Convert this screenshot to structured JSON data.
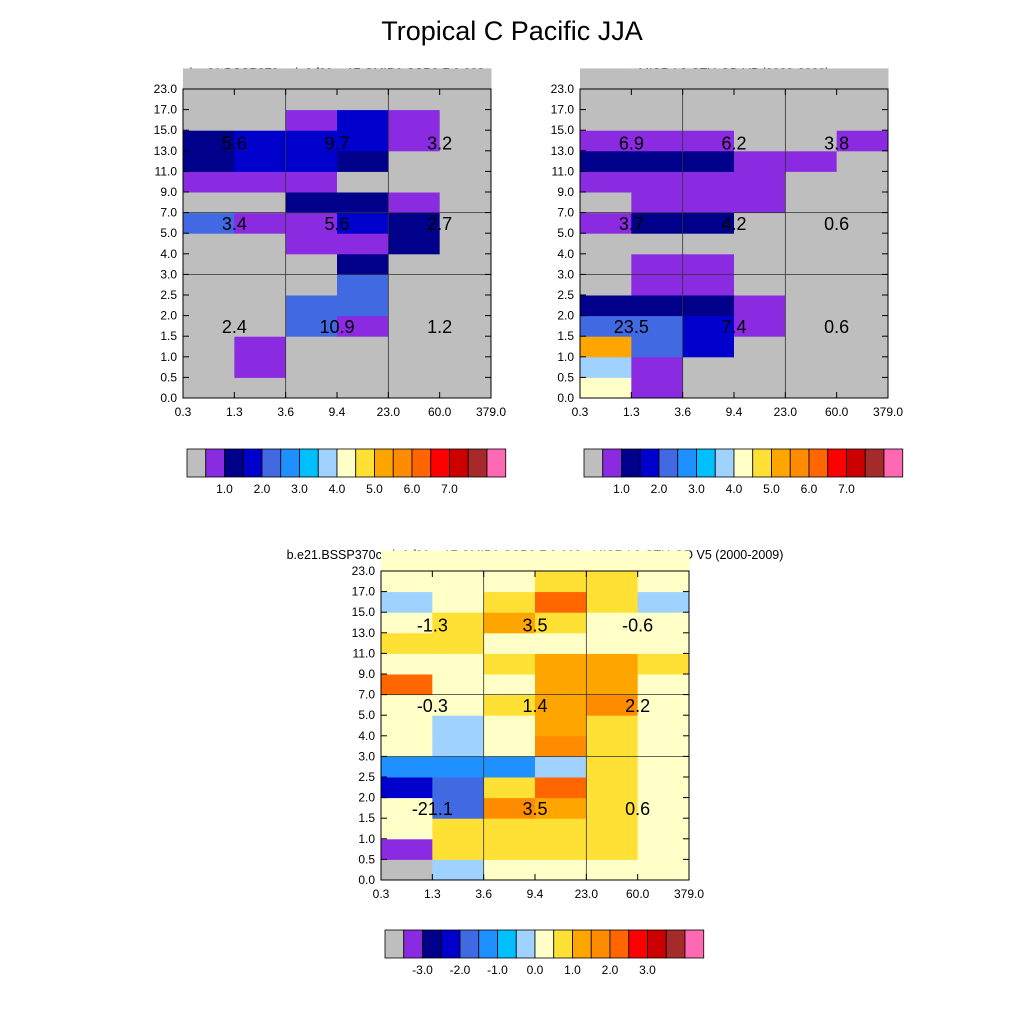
{
  "page": {
    "title": "Tropical C Pacific JJA"
  },
  "chart_data": [
    {
      "type": "heatmap",
      "title": "b.e21.BSSP370cmip6.f09_g17.CMIP6-SSP3-7.0.002",
      "x_ticks": [
        "0.3",
        "1.3",
        "3.6",
        "9.4",
        "23.0",
        "60.0",
        "379.0"
      ],
      "y_ticks": [
        "0.0",
        "0.5",
        "1.0",
        "1.5",
        "2.0",
        "2.5",
        "3.0",
        "4.0",
        "5.0",
        "7.0",
        "9.0",
        "11.0",
        "13.0",
        "15.0",
        "17.0",
        "23.0"
      ],
      "grid": true,
      "cells": [
        [
          0,
          0,
          0,
          0,
          0,
          0
        ],
        [
          0,
          1,
          0,
          0,
          0,
          0
        ],
        [
          0,
          1,
          0,
          0,
          0,
          0
        ],
        [
          0,
          0,
          4,
          1,
          0,
          0
        ],
        [
          0,
          0,
          4,
          4,
          0,
          0
        ],
        [
          0,
          0,
          0,
          4,
          0,
          0
        ],
        [
          0,
          0,
          0,
          2,
          0,
          0
        ],
        [
          0,
          0,
          1,
          1,
          2,
          0
        ],
        [
          4,
          1,
          1,
          3,
          2,
          0
        ],
        [
          0,
          0,
          2,
          2,
          1,
          0
        ],
        [
          1,
          1,
          1,
          0,
          0,
          0
        ],
        [
          2,
          3,
          3,
          2,
          0,
          0
        ],
        [
          2,
          3,
          3,
          3,
          1,
          0
        ],
        [
          0,
          0,
          1,
          3,
          1,
          0
        ],
        [
          0,
          0,
          0,
          0,
          0,
          0
        ],
        [
          0,
          0,
          0,
          0,
          0,
          0
        ]
      ],
      "annotations": [
        {
          "x": 1,
          "y": 12,
          "text": "5.6"
        },
        {
          "x": 3,
          "y": 12,
          "text": "9.7"
        },
        {
          "x": 5,
          "y": 12,
          "text": "3.2"
        },
        {
          "x": 1,
          "y": 8,
          "text": "3.4"
        },
        {
          "x": 3,
          "y": 8,
          "text": "5.6"
        },
        {
          "x": 5,
          "y": 8,
          "text": "2.7"
        },
        {
          "x": 1,
          "y": 3,
          "text": "2.4"
        },
        {
          "x": 3,
          "y": 3,
          "text": "10.9"
        },
        {
          "x": 5,
          "y": 3,
          "text": "1.2"
        }
      ],
      "colorbar_labels": [
        "1.0",
        "2.0",
        "3.0",
        "4.0",
        "5.0",
        "6.0",
        "7.0"
      ]
    },
    {
      "type": "heatmap",
      "title": "MISR L3 CTH-OD V5 (2000-2009)",
      "x_ticks": [
        "0.3",
        "1.3",
        "3.6",
        "9.4",
        "23.0",
        "60.0",
        "379.0"
      ],
      "y_ticks": [
        "0.0",
        "0.5",
        "1.0",
        "1.5",
        "2.0",
        "2.5",
        "3.0",
        "4.0",
        "5.0",
        "7.0",
        "9.0",
        "11.0",
        "13.0",
        "15.0",
        "17.0",
        "23.0"
      ],
      "grid": true,
      "cells": [
        [
          8,
          1,
          0,
          0,
          0,
          0
        ],
        [
          7,
          1,
          0,
          0,
          0,
          0
        ],
        [
          10,
          4,
          3,
          0,
          0,
          0
        ],
        [
          4,
          4,
          3,
          1,
          0,
          0
        ],
        [
          2,
          2,
          2,
          1,
          0,
          0
        ],
        [
          0,
          1,
          1,
          0,
          0,
          0
        ],
        [
          0,
          1,
          1,
          0,
          0,
          0
        ],
        [
          0,
          0,
          0,
          0,
          0,
          0
        ],
        [
          1,
          2,
          2,
          0,
          0,
          0
        ],
        [
          0,
          1,
          1,
          1,
          0,
          0
        ],
        [
          1,
          1,
          1,
          1,
          0,
          0
        ],
        [
          2,
          2,
          2,
          1,
          1,
          0
        ],
        [
          1,
          1,
          1,
          0,
          0,
          1
        ],
        [
          0,
          0,
          0,
          0,
          0,
          0
        ],
        [
          0,
          0,
          0,
          0,
          0,
          0
        ],
        [
          0,
          0,
          0,
          0,
          0,
          0
        ]
      ],
      "annotations": [
        {
          "x": 1,
          "y": 12,
          "text": "6.9"
        },
        {
          "x": 3,
          "y": 12,
          "text": "6.2"
        },
        {
          "x": 5,
          "y": 12,
          "text": "3.8"
        },
        {
          "x": 1,
          "y": 8,
          "text": "3.7"
        },
        {
          "x": 3,
          "y": 8,
          "text": "4.2"
        },
        {
          "x": 5,
          "y": 8,
          "text": "0.6"
        },
        {
          "x": 1,
          "y": 3,
          "text": "23.5"
        },
        {
          "x": 3,
          "y": 3,
          "text": "7.4"
        },
        {
          "x": 5,
          "y": 3,
          "text": "0.6"
        }
      ],
      "colorbar_labels": [
        "1.0",
        "2.0",
        "3.0",
        "4.0",
        "5.0",
        "6.0",
        "7.0"
      ]
    },
    {
      "type": "heatmap",
      "title": "b.e21.BSSP370cmip6.f09_g17.CMIP6-SSP3-7.0.002 - MISR L3 CTH-OD V5 (2000-2009)",
      "x_ticks": [
        "0.3",
        "1.3",
        "3.6",
        "9.4",
        "23.0",
        "60.0",
        "379.0"
      ],
      "y_ticks": [
        "0.0",
        "0.5",
        "1.0",
        "1.5",
        "2.0",
        "2.5",
        "3.0",
        "4.0",
        "5.0",
        "7.0",
        "9.0",
        "11.0",
        "13.0",
        "15.0",
        "17.0",
        "23.0"
      ],
      "grid": true,
      "cells": [
        [
          0,
          7,
          8,
          8,
          8,
          8
        ],
        [
          1,
          9,
          9,
          9,
          9,
          8
        ],
        [
          8,
          9,
          9,
          9,
          9,
          8
        ],
        [
          8,
          4,
          11,
          10,
          9,
          8
        ],
        [
          3,
          4,
          9,
          12,
          9,
          8
        ],
        [
          5,
          5,
          5,
          7,
          9,
          8
        ],
        [
          8,
          7,
          8,
          11,
          9,
          8
        ],
        [
          8,
          7,
          8,
          10,
          9,
          8
        ],
        [
          8,
          8,
          9,
          10,
          11,
          8
        ],
        [
          12,
          8,
          8,
          10,
          10,
          8
        ],
        [
          8,
          8,
          9,
          10,
          10,
          9
        ],
        [
          9,
          9,
          8,
          8,
          8,
          8
        ],
        [
          8,
          9,
          10,
          9,
          8,
          8
        ],
        [
          7,
          8,
          9,
          12,
          9,
          7
        ],
        [
          8,
          8,
          8,
          9,
          9,
          8
        ],
        [
          8,
          8,
          8,
          8,
          8,
          8
        ]
      ],
      "annotations": [
        {
          "x": 1,
          "y": 12,
          "text": "-1.3"
        },
        {
          "x": 3,
          "y": 12,
          "text": "3.5"
        },
        {
          "x": 5,
          "y": 12,
          "text": "-0.6"
        },
        {
          "x": 1,
          "y": 8,
          "text": "-0.3"
        },
        {
          "x": 3,
          "y": 8,
          "text": "1.4"
        },
        {
          "x": 5,
          "y": 8,
          "text": "2.2"
        },
        {
          "x": 1,
          "y": 3,
          "text": "-21.1"
        },
        {
          "x": 3,
          "y": 3,
          "text": "3.5"
        },
        {
          "x": 5,
          "y": 3,
          "text": "0.6"
        }
      ],
      "colorbar_labels": [
        "-3.0",
        "-2.0",
        "-1.0",
        "0.0",
        "1.0",
        "2.0",
        "3.0"
      ]
    }
  ],
  "palette": [
    "#bebebe",
    "#8a2be2",
    "#00008b",
    "#0000cd",
    "#4169e1",
    "#1e90ff",
    "#00bfff",
    "#a0d2ff",
    "#ffffc8",
    "#ffe135",
    "#ffa500",
    "#ff8c00",
    "#ff6600",
    "#ff0000",
    "#cc0000",
    "#a52a2a",
    "#ff69b4"
  ]
}
